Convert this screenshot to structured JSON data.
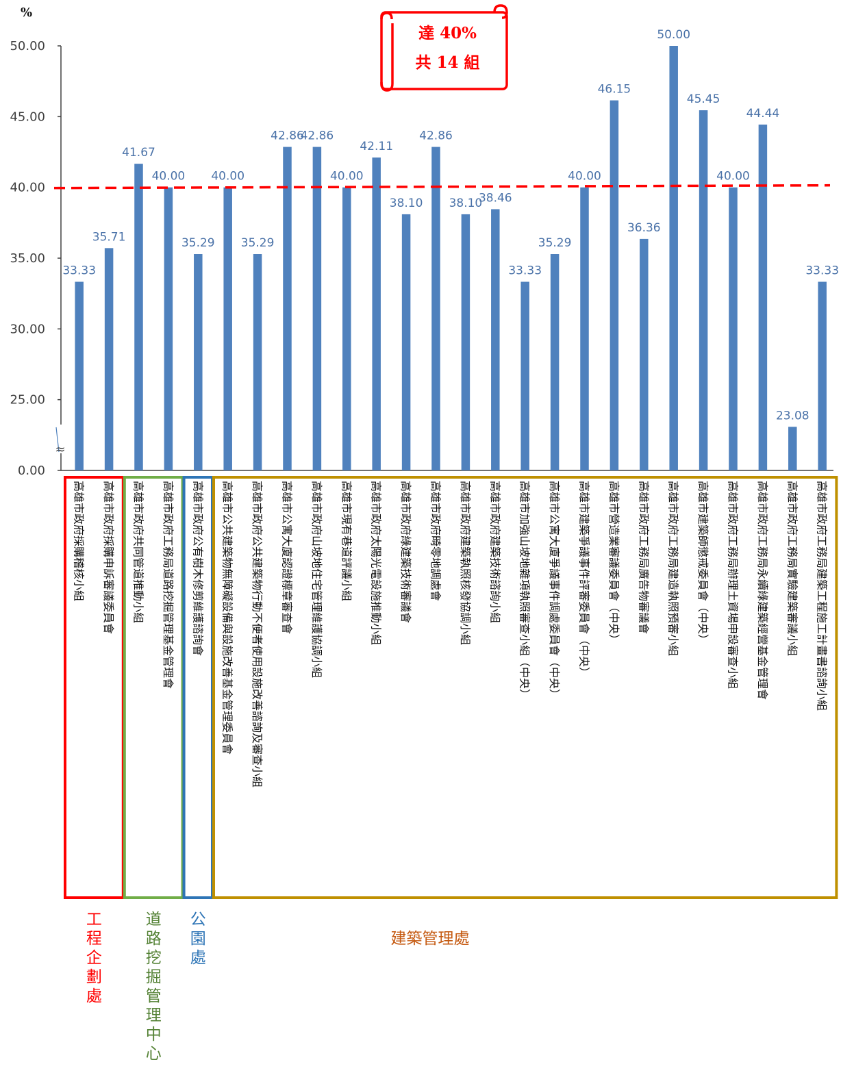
{
  "chart_data": {
    "type": "bar",
    "unit": "%",
    "y_ticks": [
      "0.00",
      "25.00",
      "30.00",
      "35.00",
      "40.00",
      "45.00",
      "50.00"
    ],
    "y_tick_values": [
      20,
      25,
      30,
      35,
      40,
      45,
      50
    ],
    "ylim": [
      20,
      50
    ],
    "axis_break": true,
    "axis_break_mark": "≈",
    "threshold": 40,
    "categories": [
      "高雄市政府採購稽核小組",
      "高雄市政府採購申訴審議委員會",
      "高雄市政府共同管道推動小組",
      "高雄市政府工務局道路挖掘管理基金管理會",
      "高雄市政府公有樹木修剪維護諮詢會",
      "高雄市公共建築物無障礙設備與設施改善基金管理委員會",
      "高雄市政府公共建築物行動不便者使用設施改善諮詢及審查小組",
      "高雄市公寓大廈認證標章審查會",
      "高雄市政府山坡地住宅管理維護協調小組",
      "高雄市現有巷道評議小組",
      "高雄市政府太陽光電設施推動小組",
      "高雄市政府綠建築技術審議會",
      "高雄市政府畸零地調處會",
      "高雄市政府建築執照核發協調小組",
      "高雄市政府建築技術諮詢小組",
      "高雄市加強山坡地雜項執照審查小組（中央）",
      "高雄市公寓大廈爭議事件調處委員會（中央）",
      "高雄市建築爭議事件評審委員會（中央）",
      "高雄市營造業審議委員會（中央）",
      "高雄市政府工務局廣告物審議會",
      "高雄市政府工務局建造執照預審小組",
      "高雄市建築師懲戒委員會（中央）",
      "高雄市政府工務局辦理土資場申設審查小組",
      "高雄市政府工務局永續綠建築經營基金管理會",
      "高雄市政府工務局實驗建築審議小組",
      "高雄市政府工務局建築工程施工計畫書諮詢小組"
    ],
    "values": [
      33.33,
      35.71,
      41.67,
      40.0,
      35.29,
      40.0,
      35.29,
      42.86,
      42.86,
      40.0,
      42.11,
      38.1,
      42.86,
      38.1,
      38.46,
      33.33,
      35.29,
      40.0,
      46.15,
      36.36,
      50.0,
      45.45,
      40.0,
      44.44,
      23.08,
      33.33
    ],
    "value_labels": [
      "33.33",
      "35.71",
      "41.67",
      "40.00",
      "35.29",
      "40.00",
      "35.29",
      "42.86",
      "42.86",
      "40.00",
      "42.11",
      "38.10",
      "42.86",
      "38.10",
      "38.46",
      "33.33",
      "35.29",
      "40.00",
      "46.15",
      "36.36",
      "50.00",
      "45.45",
      "40.00",
      "44.44",
      "23.08",
      "33.33"
    ],
    "groups": [
      {
        "name": "工程企劃處",
        "start": 0,
        "end": 1,
        "color": "#ff0000"
      },
      {
        "name": "道路挖掘管理中心",
        "start": 2,
        "end": 3,
        "color": "#70ad47"
      },
      {
        "name": "公園處",
        "start": 4,
        "end": 4,
        "color": "#2e75b6"
      },
      {
        "name": "建築管理處",
        "start": 5,
        "end": 25,
        "color": "#bf9000"
      }
    ],
    "group_label_colors": [
      "#ff0000",
      "#548235",
      "#2e75b6",
      "#c55a11"
    ],
    "callout": {
      "lines": [
        "達 40%",
        "共 14 組"
      ],
      "color": "#ff0000"
    },
    "bar_color": "#4f81bd",
    "threshold_color": "#ff0000",
    "grid": false
  }
}
